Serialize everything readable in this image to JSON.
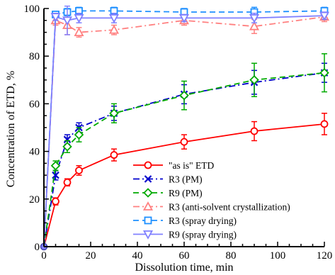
{
  "chart_data": {
    "type": "line",
    "xlabel": "Dissolution time, min",
    "ylabel": "Concentration of ETD, %",
    "xlim": [
      0,
      120
    ],
    "ylim": [
      0,
      100
    ],
    "xticks": [
      0,
      20,
      40,
      60,
      80,
      100,
      120
    ],
    "yticks": [
      0,
      20,
      40,
      60,
      80,
      100
    ],
    "grid": false,
    "legend_position": "lower-right",
    "series": [
      {
        "name": "\"as is\" ETD",
        "color": "#ff0000",
        "marker": "circle",
        "dash": "solid",
        "x": [
          0,
          5,
          10,
          15,
          30,
          60,
          90,
          120
        ],
        "y": [
          0,
          19,
          27,
          32,
          38.5,
          44,
          48.5,
          51.5
        ],
        "err": [
          0,
          1.5,
          1.5,
          2,
          2.5,
          3,
          4,
          4.5
        ]
      },
      {
        "name": "R3 (PM)",
        "color": "#0000cc",
        "marker": "x",
        "dash": "dashdot",
        "x": [
          0,
          5,
          10,
          15,
          30,
          60,
          90,
          120
        ],
        "y": [
          0,
          30,
          45,
          50,
          56,
          64,
          69,
          73
        ],
        "err": [
          0,
          2,
          2,
          2,
          3,
          4,
          5,
          4
        ]
      },
      {
        "name": "R9 (PM)",
        "color": "#00aa00",
        "marker": "diamond",
        "dash": "dashed",
        "x": [
          0,
          5,
          10,
          15,
          30,
          60,
          90,
          120
        ],
        "y": [
          0,
          34,
          42,
          47,
          56,
          63.5,
          70,
          73
        ],
        "err": [
          0,
          2,
          2.5,
          3,
          4,
          6,
          7,
          8
        ]
      },
      {
        "name": "R3 (anti-solvent crystallization)",
        "color": "#ff8080",
        "marker": "triangle",
        "dash": "dashdot",
        "x": [
          0,
          5,
          10,
          15,
          30,
          60,
          90,
          120
        ],
        "y": [
          0,
          95,
          93,
          90,
          91,
          95,
          92.5,
          96.5
        ],
        "err": [
          0,
          2,
          4,
          2,
          2,
          2,
          3,
          2
        ]
      },
      {
        "name": "R3 (spray drying)",
        "color": "#1e90ff",
        "marker": "square",
        "dash": "dashed",
        "x": [
          0,
          5,
          10,
          15,
          30,
          60,
          90,
          120
        ],
        "y": [
          0,
          97.5,
          98.5,
          99,
          99,
          98.5,
          98.5,
          99
        ],
        "err": [
          0,
          1,
          1.5,
          1.5,
          1.5,
          1.5,
          2,
          1.5
        ]
      },
      {
        "name": "R9 (spray drying)",
        "color": "#8080ff",
        "marker": "triangle-down",
        "dash": "solid",
        "x": [
          0,
          5,
          10,
          15,
          30,
          60,
          90,
          120
        ],
        "y": [
          0,
          96.5,
          95,
          96,
          96,
          96,
          96,
          97
        ],
        "err": [
          0,
          1.5,
          6,
          2,
          2,
          1.5,
          2,
          1.5
        ]
      }
    ]
  }
}
